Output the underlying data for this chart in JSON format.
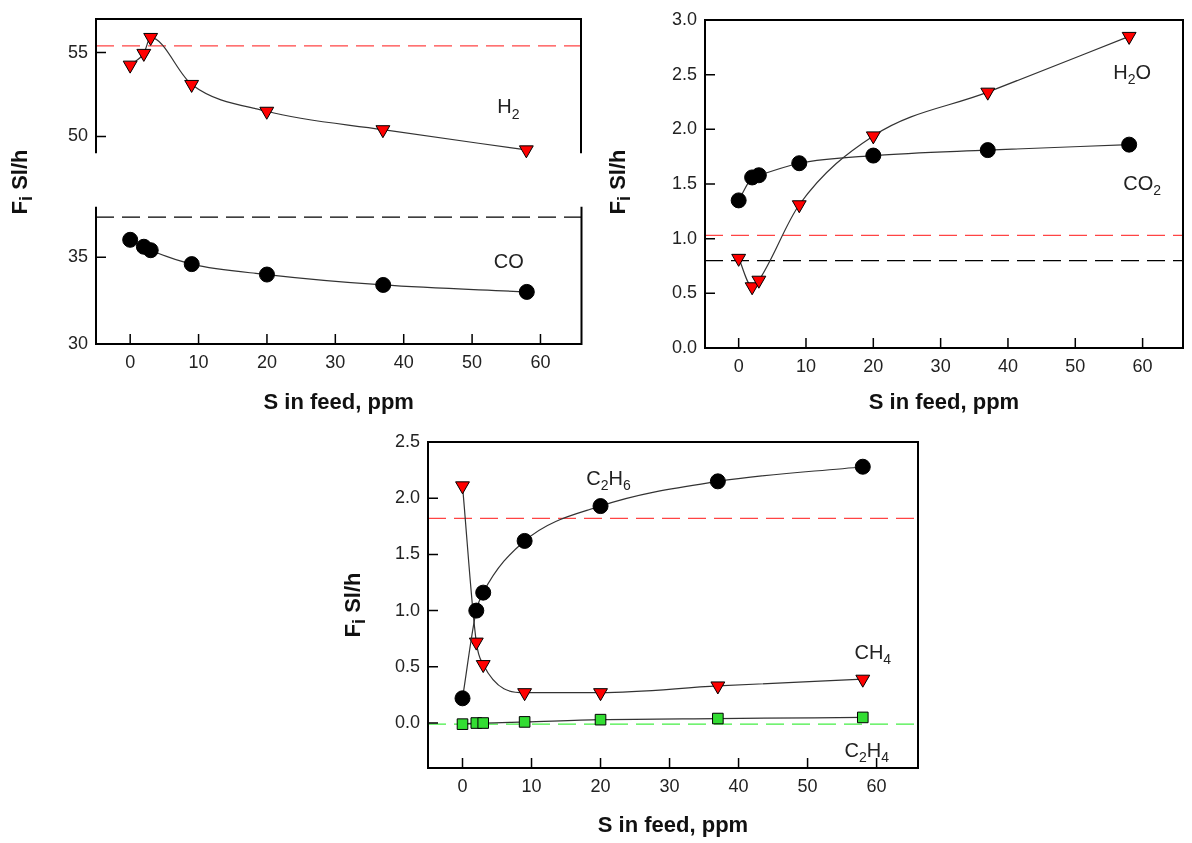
{
  "chart_data": [
    {
      "type": "line",
      "x": [
        0,
        2,
        3,
        9,
        20,
        37,
        58
      ],
      "series": [
        {
          "name": "H$_{2}$",
          "color": "#ff0000",
          "marker": "triangle",
          "values": [
            54.25,
            54.95,
            55.9,
            53.1,
            51.5,
            50.4,
            49.2
          ]
        }
      ],
      "xlim": [
        -5,
        66
      ],
      "xticks": [
        0,
        10,
        20,
        30,
        40,
        50,
        60
      ],
      "ylim": [
        49,
        57
      ],
      "yticks": [
        50,
        55
      ],
      "tick_labels": "y",
      "grid": false,
      "legend": false,
      "ref_lines": [
        {
          "axis": "y",
          "value": 55.4,
          "color": "#ff4444",
          "line_style": "dashed"
        }
      ]
    },
    {
      "type": "line",
      "x": [
        0,
        2,
        3,
        9,
        20,
        37,
        58
      ],
      "series": [
        {
          "name": "CO",
          "color": "#000000",
          "marker": "circle",
          "values": [
            36.0,
            35.6,
            35.4,
            34.6,
            34.0,
            33.4,
            33.0
          ]
        }
      ],
      "xlabel": "S in feed, ppm",
      "ylabel": "F$_{i}$ Sl/h",
      "xlim": [
        -5,
        66
      ],
      "xticks": [
        0,
        10,
        20,
        30,
        40,
        50,
        60
      ],
      "ylim": [
        30,
        37.9
      ],
      "yticks": [
        30,
        35
      ],
      "grid": false,
      "legend": false,
      "ref_lines": [
        {
          "axis": "y",
          "value": 37.3,
          "color": "#000000",
          "line_style": "dashed"
        }
      ]
    },
    {
      "type": "line",
      "x": [
        0,
        2,
        3,
        9,
        20,
        37,
        58
      ],
      "series": [
        {
          "name": "H$_{2}$O",
          "color": "#ff0000",
          "marker": "triangle",
          "values": [
            0.82,
            0.56,
            0.62,
            1.31,
            1.94,
            2.34,
            2.85
          ]
        },
        {
          "name": "CO$_{2}$",
          "color": "#000000",
          "marker": "circle",
          "values": [
            1.35,
            1.56,
            1.58,
            1.69,
            1.76,
            1.81,
            1.86
          ]
        }
      ],
      "xlabel": "S in feed, ppm",
      "ylabel": "F$_{i}$ Sl/h",
      "xlim": [
        -5,
        66
      ],
      "xticks": [
        0,
        10,
        20,
        30,
        40,
        50,
        60
      ],
      "ylim": [
        0,
        3
      ],
      "yticks": [
        {
          "value": 0,
          "label": "0.0"
        },
        {
          "value": 0.5,
          "label": "0.5"
        },
        {
          "value": 1,
          "label": "1.0"
        },
        {
          "value": 1.5,
          "label": "1.5"
        },
        {
          "value": 2,
          "label": "2.0"
        },
        {
          "value": 2.5,
          "label": "2.5"
        },
        {
          "value": 3,
          "label": "3.0"
        }
      ],
      "grid": false,
      "legend": false,
      "ref_lines": [
        {
          "axis": "y",
          "value": 1.03,
          "color": "#ff4444",
          "line_style": "dashed"
        },
        {
          "axis": "y",
          "value": 0.8,
          "color": "#000000",
          "line_style": "dashed"
        }
      ]
    },
    {
      "type": "line",
      "x": [
        0,
        2,
        3,
        9,
        20,
        37,
        58
      ],
      "series": [
        {
          "name": "C$_{2}$H$_{6}$",
          "color": "#000000",
          "marker": "circle",
          "values": [
            0.22,
            1.0,
            1.16,
            1.62,
            1.93,
            2.15,
            2.28
          ]
        },
        {
          "name": "CH$_{4}$",
          "color": "#ff0000",
          "marker": "triangle",
          "values": [
            2.11,
            0.72,
            0.52,
            0.27,
            0.27,
            0.33,
            0.39
          ]
        },
        {
          "name": "C$_{2}$H$_{4}$",
          "color": "#33dd33",
          "marker": "square",
          "values": [
            -0.01,
            0.0,
            0.0,
            0.01,
            0.03,
            0.04,
            0.05
          ]
        }
      ],
      "xlabel": "S in feed, ppm",
      "ylabel": "F$_{i}$ Sl/h",
      "xlim": [
        -5,
        66
      ],
      "xticks": [
        0,
        10,
        20,
        30,
        40,
        50,
        60
      ],
      "ylim": [
        -0.4,
        2.5
      ],
      "yticks": [
        {
          "value": 0,
          "label": "0.0"
        },
        {
          "value": 0.5,
          "label": "0.5"
        },
        {
          "value": 1,
          "label": "1.0"
        },
        {
          "value": 1.5,
          "label": "1.5"
        },
        {
          "value": 2,
          "label": "2.0"
        },
        {
          "value": 2.5,
          "label": "2.5"
        }
      ],
      "grid": false,
      "legend": false,
      "ref_lines": [
        {
          "axis": "y",
          "value": 1.82,
          "color": "#ff4444",
          "line_style": "dashed"
        },
        {
          "axis": "y",
          "value": -0.01,
          "color": "#44ee44",
          "line_style": "dashed"
        }
      ]
    }
  ]
}
